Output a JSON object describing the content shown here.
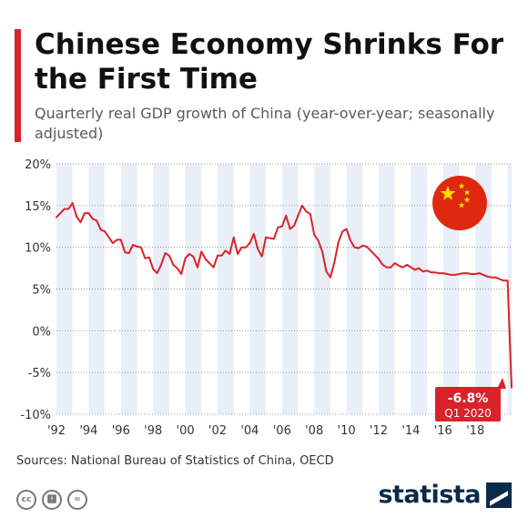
{
  "header": {
    "title": "Chinese Economy Shrinks For the First Time",
    "subtitle": "Quarterly real GDP growth of China (year-over-year; seasonally adjusted)"
  },
  "footer": {
    "source": "Sources: National Bureau of Statistics of China, OECD",
    "brand": "statista",
    "license_icons": [
      "cc-icon",
      "attribution-icon",
      "noderivs-icon"
    ]
  },
  "colors": {
    "line": "#d9222a",
    "accent": "#d9222a",
    "band": "#e9eef7",
    "flag_red": "#de2910",
    "flag_star": "#ffde00",
    "brand": "#0a2a4a"
  },
  "chart_data": {
    "type": "line",
    "title": "Chinese Economy Shrinks For the First Time",
    "subtitle": "Quarterly real GDP growth of China (year-over-year; seasonally adjusted)",
    "xlabel": "",
    "ylabel": "",
    "ylim": [
      -10,
      20
    ],
    "y_ticks": [
      20,
      15,
      10,
      5,
      0,
      -5,
      -10
    ],
    "y_tick_labels": [
      "20%",
      "15%",
      "10%",
      "5%",
      "0%",
      "-5%",
      "-10%"
    ],
    "x_tick_labels": [
      "'92",
      "'94",
      "'96",
      "'98",
      "'00",
      "'02",
      "'04",
      "'06",
      "'08",
      "'10",
      "'12",
      "'14",
      "'16",
      "'18"
    ],
    "x_tick_years": [
      1992,
      1994,
      1996,
      1998,
      2000,
      2002,
      2004,
      2006,
      2008,
      2010,
      2012,
      2014,
      2016,
      2018
    ],
    "x_range": [
      1992,
      2020.25
    ],
    "grid": true,
    "alternating_year_bands": true,
    "series": [
      {
        "values": [
          [
            1992.0,
            13.6
          ],
          [
            1992.25,
            14.1
          ],
          [
            1992.5,
            14.6
          ],
          [
            1992.75,
            14.6
          ],
          [
            1993.0,
            15.3
          ],
          [
            1993.25,
            13.7
          ],
          [
            1993.5,
            13.0
          ],
          [
            1993.75,
            14.1
          ],
          [
            1994.0,
            14.1
          ],
          [
            1994.25,
            13.4
          ],
          [
            1994.5,
            13.2
          ],
          [
            1994.75,
            12.1
          ],
          [
            1995.0,
            11.9
          ],
          [
            1995.25,
            11.2
          ],
          [
            1995.5,
            10.5
          ],
          [
            1995.75,
            10.9
          ],
          [
            1996.0,
            10.9
          ],
          [
            1996.25,
            9.4
          ],
          [
            1996.5,
            9.3
          ],
          [
            1996.75,
            10.3
          ],
          [
            1997.0,
            10.1
          ],
          [
            1997.25,
            10.0
          ],
          [
            1997.5,
            8.7
          ],
          [
            1997.75,
            8.8
          ],
          [
            1998.0,
            7.4
          ],
          [
            1998.25,
            6.9
          ],
          [
            1998.5,
            7.9
          ],
          [
            1998.75,
            9.3
          ],
          [
            1999.0,
            9.0
          ],
          [
            1999.25,
            7.9
          ],
          [
            1999.5,
            7.5
          ],
          [
            1999.75,
            6.8
          ],
          [
            2000.0,
            8.7
          ],
          [
            2000.25,
            9.2
          ],
          [
            2000.5,
            8.9
          ],
          [
            2000.75,
            7.6
          ],
          [
            2001.0,
            9.5
          ],
          [
            2001.25,
            8.6
          ],
          [
            2001.5,
            8.1
          ],
          [
            2001.75,
            7.6
          ],
          [
            2002.0,
            9.0
          ],
          [
            2002.25,
            9.0
          ],
          [
            2002.5,
            9.6
          ],
          [
            2002.75,
            9.2
          ],
          [
            2003.0,
            11.2
          ],
          [
            2003.25,
            9.2
          ],
          [
            2003.5,
            10.0
          ],
          [
            2003.75,
            10.0
          ],
          [
            2004.0,
            10.5
          ],
          [
            2004.25,
            11.6
          ],
          [
            2004.5,
            9.8
          ],
          [
            2004.75,
            8.9
          ],
          [
            2005.0,
            11.2
          ],
          [
            2005.25,
            11.1
          ],
          [
            2005.5,
            11.0
          ],
          [
            2005.75,
            12.4
          ],
          [
            2006.0,
            12.5
          ],
          [
            2006.25,
            13.8
          ],
          [
            2006.5,
            12.2
          ],
          [
            2006.75,
            12.6
          ],
          [
            2007.0,
            13.8
          ],
          [
            2007.25,
            15.0
          ],
          [
            2007.5,
            14.3
          ],
          [
            2007.75,
            14.0
          ],
          [
            2008.0,
            11.5
          ],
          [
            2008.25,
            10.8
          ],
          [
            2008.5,
            9.5
          ],
          [
            2008.75,
            7.1
          ],
          [
            2009.0,
            6.4
          ],
          [
            2009.25,
            8.2
          ],
          [
            2009.5,
            10.6
          ],
          [
            2009.75,
            11.9
          ],
          [
            2010.0,
            12.2
          ],
          [
            2010.25,
            10.8
          ],
          [
            2010.5,
            10.0
          ],
          [
            2010.75,
            9.9
          ],
          [
            2011.0,
            10.2
          ],
          [
            2011.25,
            10.1
          ],
          [
            2011.5,
            9.6
          ],
          [
            2011.75,
            9.1
          ],
          [
            2012.0,
            8.6
          ],
          [
            2012.25,
            7.9
          ],
          [
            2012.5,
            7.6
          ],
          [
            2012.75,
            7.6
          ],
          [
            2013.0,
            8.1
          ],
          [
            2013.25,
            7.8
          ],
          [
            2013.5,
            7.6
          ],
          [
            2013.75,
            7.9
          ],
          [
            2014.0,
            7.6
          ],
          [
            2014.25,
            7.3
          ],
          [
            2014.5,
            7.5
          ],
          [
            2014.75,
            7.1
          ],
          [
            2015.0,
            7.2
          ],
          [
            2015.25,
            7.0
          ],
          [
            2015.5,
            7.0
          ],
          [
            2015.75,
            6.9
          ],
          [
            2016.0,
            6.9
          ],
          [
            2016.25,
            6.8
          ],
          [
            2016.5,
            6.7
          ],
          [
            2016.75,
            6.7
          ],
          [
            2017.0,
            6.8
          ],
          [
            2017.25,
            6.9
          ],
          [
            2017.5,
            6.9
          ],
          [
            2017.75,
            6.8
          ],
          [
            2018.0,
            6.8
          ],
          [
            2018.25,
            6.9
          ],
          [
            2018.5,
            6.7
          ],
          [
            2018.75,
            6.5
          ],
          [
            2019.0,
            6.4
          ],
          [
            2019.25,
            6.4
          ],
          [
            2019.5,
            6.2
          ],
          [
            2019.75,
            6.0
          ],
          [
            2020.0,
            6.0
          ],
          [
            2020.25,
            -6.8
          ]
        ]
      }
    ],
    "annotation": {
      "value": "-6.8%",
      "period": "Q1 2020"
    }
  }
}
